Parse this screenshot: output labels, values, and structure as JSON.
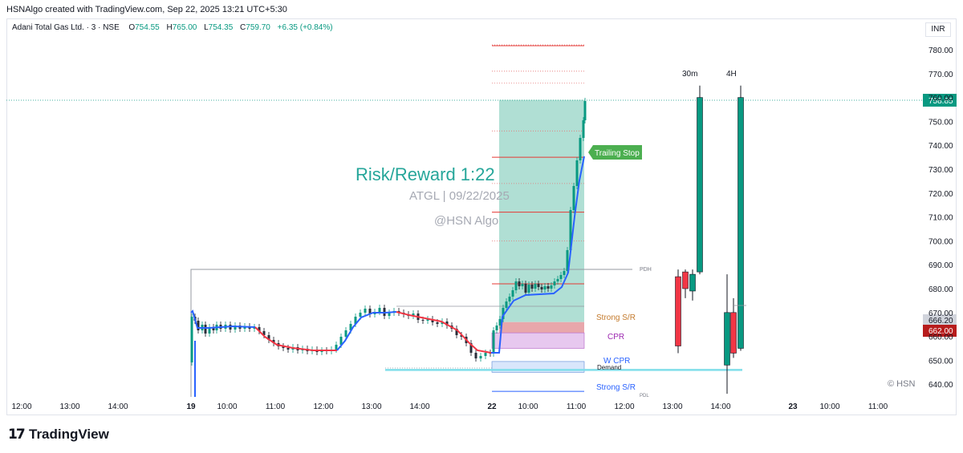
{
  "header": {
    "credit": "HSNAlgo created with TradingView.com, Sep 22, 2025 13:21 UTC+5:30"
  },
  "symbol": {
    "name": "Adani Total Gas Ltd. · 3 · NSE",
    "open_label": "O",
    "open": "754.55",
    "high_label": "H",
    "high": "765.00",
    "low_label": "L",
    "low": "754.35",
    "close_label": "C",
    "close": "759.70",
    "change": "+6.35 (+0.84%)"
  },
  "currency": "INR",
  "overlay": {
    "title": "Risk/Reward 1:22",
    "subtitle": "ATGL | 09/22/2025",
    "handle": "@HSN Algo",
    "watermark": "© HSN",
    "trailing_stop": "Trailing Stop",
    "tf_30m": "30m",
    "tf_4h": "4H"
  },
  "levels": {
    "pdh": "PDH",
    "pdl": "PDL",
    "strong_sr_top": "Strong S/R",
    "cpr": "CPR",
    "w_cpr": "W CPR",
    "demand": "Demand",
    "strong_sr_bottom": "Strong S/R"
  },
  "price_tags": {
    "last": "758.85",
    "grey": "666.20",
    "red": "662.00"
  },
  "colors": {
    "up": "#089981",
    "down": "#f23645",
    "trend_up": "#2962ff",
    "trend_down": "#f23645",
    "reward_zone": "#a7dccf",
    "tag_green": "#089981",
    "tag_red": "#b71c1c",
    "tag_grey": "#d1d4dc"
  },
  "chart_data": {
    "type": "candlestick",
    "y_axis": {
      "ticks": [
        "780.00",
        "770.00",
        "760.00",
        "750.00",
        "740.00",
        "730.00",
        "720.00",
        "710.00",
        "700.00",
        "690.00",
        "680.00",
        "670.00",
        "660.00",
        "650.00",
        "640.00"
      ],
      "min": 635,
      "max": 785
    },
    "x_axis": {
      "ticks": [
        "12:00",
        "13:00",
        "14:00",
        "19",
        "10:00",
        "11:00",
        "12:00",
        "13:00",
        "14:00",
        "22",
        "10:00",
        "11:00",
        "12:00",
        "13:00",
        "14:00",
        "23",
        "10:00",
        "11:00"
      ]
    },
    "htf_candles": [
      {
        "tf": "30m",
        "open": 685,
        "high": 688,
        "low": 653,
        "close": 656
      },
      {
        "tf": "30m",
        "open": 687,
        "high": 688,
        "low": 676,
        "close": 680
      },
      {
        "tf": "30m",
        "open": 679,
        "high": 688,
        "low": 675,
        "close": 686
      },
      {
        "tf": "30m",
        "open": 687,
        "high": 765,
        "low": 686,
        "close": 760
      },
      {
        "tf": "4H",
        "open": 648,
        "high": 686,
        "low": 636,
        "close": 670
      },
      {
        "tf": "4H",
        "open": 670,
        "high": 676,
        "low": 651,
        "close": 653
      },
      {
        "tf": "4H",
        "open": 655,
        "high": 765,
        "low": 654,
        "close": 760
      }
    ],
    "levels": {
      "pdh": 687,
      "strong_sr_top": 666,
      "cpr_top": 661,
      "cpr_bottom": 655,
      "w_cpr_top": 649,
      "w_cpr_bottom": 645,
      "demand": 646,
      "strong_sr_bottom": 637,
      "entry": 666,
      "target": 759,
      "stop": 661
    }
  }
}
